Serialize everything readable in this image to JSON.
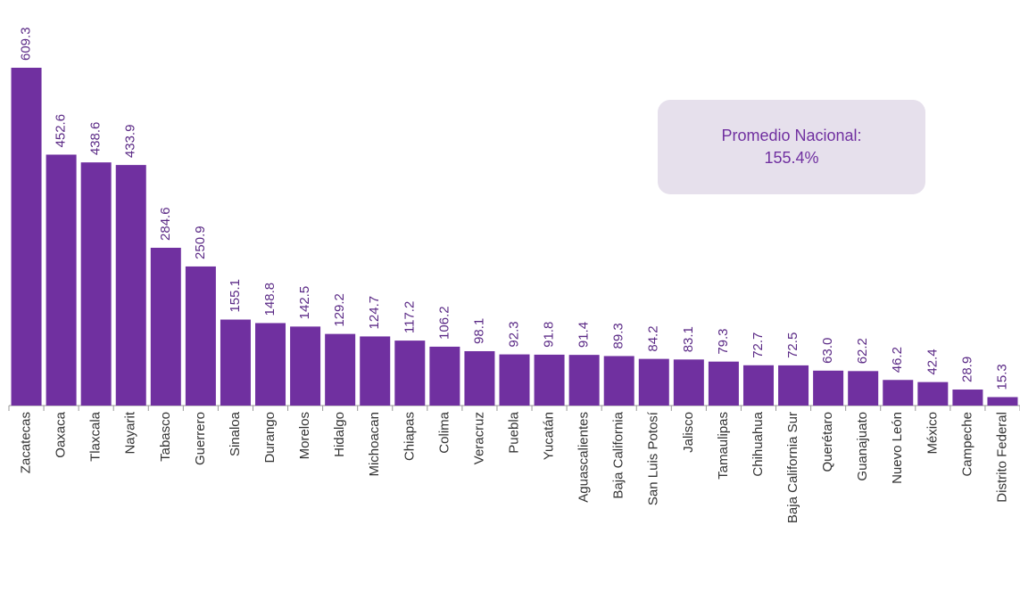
{
  "chart_data": {
    "type": "bar",
    "categories": [
      "Zacatecas",
      "Oaxaca",
      "Tlaxcala",
      "Nayarit",
      "Tabasco",
      "Guerrero",
      "Sinaloa",
      "Durango",
      "Morelos",
      "Hidalgo",
      "Michoacan",
      "Chiapas",
      "Colima",
      "Veracruz",
      "Puebla",
      "Yucatán",
      "Aguascalientes",
      "Baja California",
      "San Luis Potosí",
      "Jalisco",
      "Tamaulipas",
      "Chihuahua",
      "Baja California Sur",
      "Querétaro",
      "Guanajuato",
      "Nuevo León",
      "México",
      "Campeche",
      "Distrito Federal"
    ],
    "values": [
      609.3,
      452.6,
      438.6,
      433.9,
      284.6,
      250.9,
      155.1,
      148.8,
      142.5,
      129.2,
      124.7,
      117.2,
      106.2,
      98.1,
      92.3,
      91.8,
      91.4,
      89.3,
      84.2,
      83.1,
      79.3,
      72.7,
      72.5,
      63.0,
      62.2,
      46.2,
      42.4,
      28.9,
      15.3
    ],
    "value_labels": [
      "609.3",
      "452.6",
      "438.6",
      "433.9",
      "284.6",
      "250.9",
      "155.1",
      "148.8",
      "142.5",
      "129.2",
      "124.7",
      "117.2",
      "106.2",
      "98.1",
      "92.3",
      "91.8",
      "91.4",
      "89.3",
      "84.2",
      "83.1",
      "79.3",
      "72.7",
      "72.5",
      "63.0",
      "62.2",
      "46.2",
      "42.4",
      "28.9",
      "15.3"
    ],
    "color": "#7030a0",
    "annotation": [
      "Promedio Nacional:",
      "155.4%"
    ]
  }
}
